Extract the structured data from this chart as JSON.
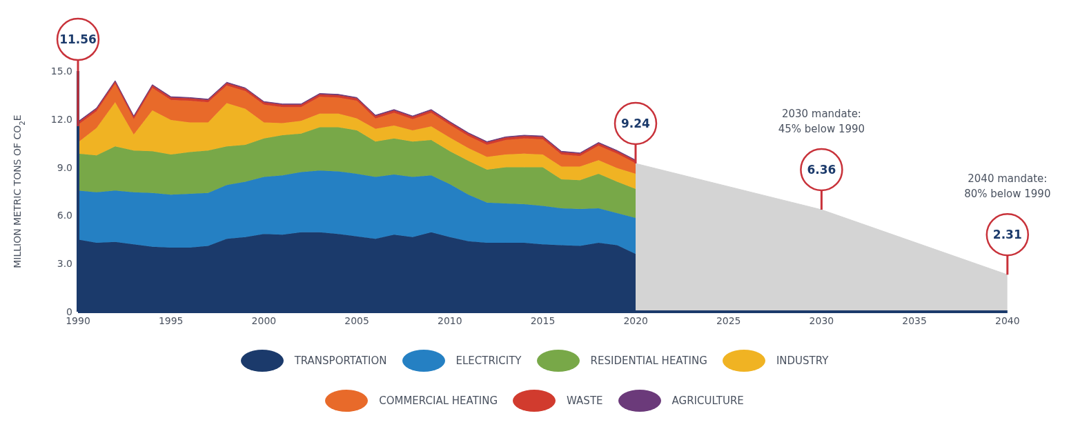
{
  "chart_data": [
    {
      "type": "area",
      "stacked": true,
      "ylabel": "MILLION METRIC TONS OF CO$_{2}$E",
      "x": [
        1990,
        1991,
        1992,
        1993,
        1994,
        1995,
        1996,
        1997,
        1998,
        1999,
        2000,
        2001,
        2002,
        2003,
        2004,
        2005,
        2006,
        2007,
        2008,
        2009,
        2010,
        2011,
        2012,
        2013,
        2014,
        2015,
        2016,
        2017,
        2018,
        2019,
        2020
      ],
      "series": [
        {
          "name": "TRANSPORTATION",
          "color": "#1b3a6b",
          "values": [
            4.5,
            4.3,
            4.35,
            4.2,
            4.05,
            4.0,
            4.0,
            4.1,
            4.55,
            4.65,
            4.85,
            4.8,
            4.95,
            4.95,
            4.85,
            4.7,
            4.55,
            4.8,
            4.65,
            4.95,
            4.65,
            4.4,
            4.3,
            4.3,
            4.3,
            4.2,
            4.15,
            4.1,
            4.3,
            4.15,
            3.6
          ]
        },
        {
          "name": "ELECTRICITY",
          "color": "#2580c3",
          "values": [
            3.05,
            3.15,
            3.2,
            3.25,
            3.35,
            3.3,
            3.35,
            3.3,
            3.35,
            3.45,
            3.55,
            3.7,
            3.75,
            3.85,
            3.9,
            3.9,
            3.85,
            3.75,
            3.75,
            3.55,
            3.3,
            2.9,
            2.5,
            2.45,
            2.4,
            2.4,
            2.3,
            2.3,
            2.15,
            2.0,
            2.25
          ]
        },
        {
          "name": "RESIDENTIAL HEATING",
          "color": "#78a848",
          "values": [
            2.3,
            2.3,
            2.75,
            2.6,
            2.6,
            2.5,
            2.6,
            2.65,
            2.4,
            2.3,
            2.4,
            2.5,
            2.4,
            2.7,
            2.75,
            2.7,
            2.2,
            2.25,
            2.2,
            2.2,
            2.05,
            2.1,
            2.05,
            2.25,
            2.3,
            2.4,
            1.8,
            1.8,
            2.15,
            1.95,
            1.8
          ]
        },
        {
          "name": "INDUSTRY",
          "color": "#f0b323",
          "values": [
            0.7,
            1.7,
            2.75,
            1.0,
            2.55,
            2.15,
            1.85,
            1.75,
            2.7,
            2.25,
            1.0,
            0.75,
            0.8,
            0.85,
            0.85,
            0.75,
            0.8,
            0.8,
            0.7,
            0.85,
            0.85,
            0.8,
            0.8,
            0.8,
            0.85,
            0.8,
            0.8,
            0.85,
            0.85,
            0.85,
            0.95
          ]
        },
        {
          "name": "COMMERCIAL HEATING",
          "color": "#e86a2a",
          "values": [
            1.1,
            1.05,
            1.15,
            0.95,
            1.4,
            1.25,
            1.35,
            1.25,
            1.1,
            1.1,
            1.1,
            1.0,
            0.85,
            1.05,
            1.0,
            1.1,
            0.65,
            0.8,
            0.7,
            0.85,
            0.8,
            0.75,
            0.75,
            0.9,
            0.95,
            0.95,
            0.75,
            0.65,
            0.9,
            0.9,
            0.65
          ]
        },
        {
          "name": "WASTE",
          "color": "#d13b2e",
          "values": [
            0.15,
            0.15,
            0.15,
            0.15,
            0.15,
            0.15,
            0.15,
            0.15,
            0.15,
            0.15,
            0.15,
            0.15,
            0.15,
            0.15,
            0.15,
            0.15,
            0.15,
            0.15,
            0.15,
            0.15,
            0.15,
            0.15,
            0.15,
            0.15,
            0.15,
            0.15,
            0.15,
            0.15,
            0.15,
            0.15,
            0.15
          ]
        },
        {
          "name": "AGRICULTURE",
          "color": "#6b3a7a",
          "values": [
            0.05,
            0.05,
            0.05,
            0.05,
            0.05,
            0.05,
            0.05,
            0.05,
            0.05,
            0.05,
            0.05,
            0.05,
            0.05,
            0.05,
            0.05,
            0.05,
            0.05,
            0.05,
            0.05,
            0.05,
            0.05,
            0.05,
            0.05,
            0.05,
            0.05,
            0.05,
            0.05,
            0.05,
            0.05,
            0.05,
            0.05
          ]
        }
      ],
      "xlim": [
        1990,
        2020
      ],
      "xticks": [
        1990,
        1995,
        2000,
        2005,
        2010,
        2015,
        2020
      ],
      "ylim": [
        0,
        15
      ],
      "yticks": [
        0,
        {
          "value": 3,
          "label": "3.0"
        },
        {
          "value": 6,
          "label": "6.0"
        },
        {
          "value": 9,
          "label": "9.0"
        },
        {
          "value": 12,
          "label": "12.0"
        },
        {
          "value": 15,
          "label": "15.0"
        }
      ],
      "legend": "bottom",
      "annotations": [
        {
          "text": "11.56",
          "x": 1990,
          "y": 11.56
        }
      ]
    },
    {
      "type": "area",
      "x": [
        2020,
        2030,
        2040
      ],
      "series": [
        {
          "color": "#d4d4d4",
          "values": [
            9.24,
            6.36,
            2.31
          ],
          "value_labels": [
            "9.24",
            "6.36",
            "2.31"
          ]
        }
      ],
      "xlim": [
        2020,
        2040
      ],
      "xticks": [
        2025,
        2030,
        2035,
        2040
      ],
      "ylim": [
        0,
        15
      ],
      "tick_labels": "x",
      "annotations": [
        "2030 mandate:\n45% below 1990",
        "2040 mandate:\n80% below 1990"
      ]
    }
  ]
}
